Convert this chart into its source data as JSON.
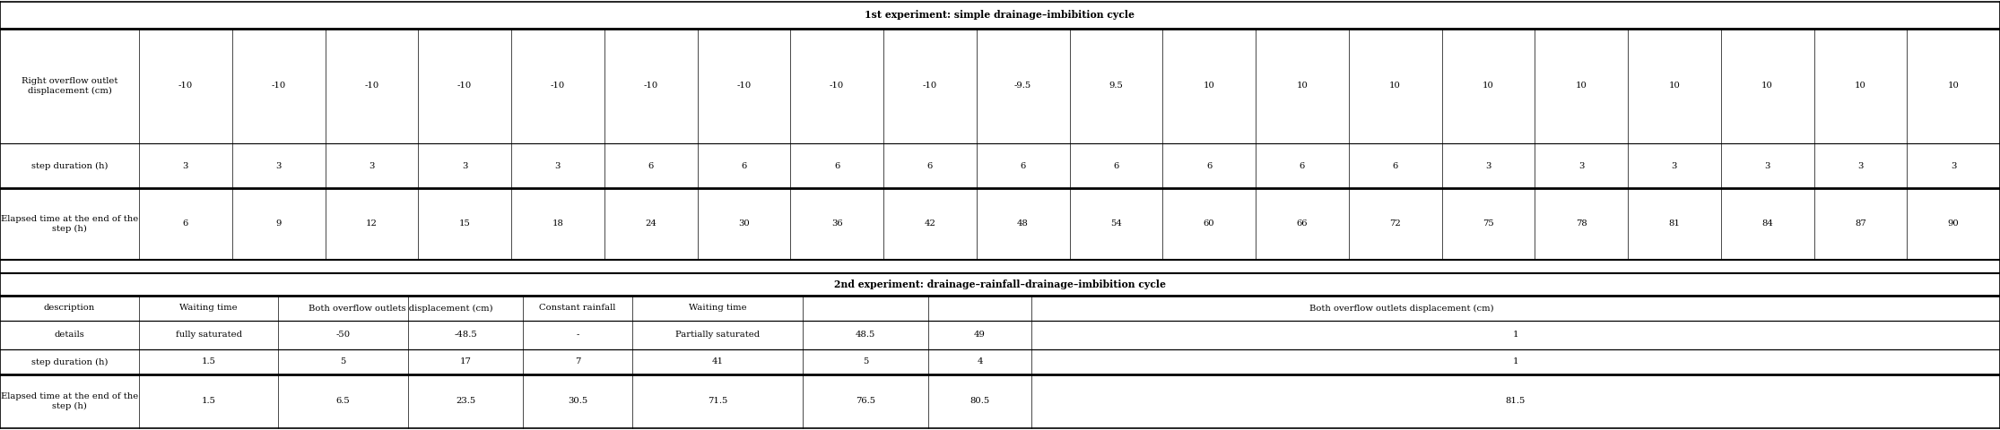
{
  "title1": "1st experiment: simple drainage–imbibition cycle",
  "title2": "2nd experiment: drainage–rainfall–drainage–imbibition cycle",
  "exp1_row0": "Right overflow outlet\ndisplacement (cm)",
  "exp1_row1": "step duration (h)",
  "exp1_row2": "Elapsed time at the end of the\nstep (h)",
  "exp1_displacement": [
    "-10",
    "-10",
    "-10",
    "-10",
    "-10",
    "-10",
    "-10",
    "-10",
    "-10",
    "-9.5",
    "9.5",
    "10",
    "10",
    "10",
    "10",
    "10",
    "10",
    "10",
    "10",
    "10"
  ],
  "exp1_step": [
    "3",
    "3",
    "3",
    "3",
    "3",
    "6",
    "6",
    "6",
    "6",
    "6",
    "6",
    "6",
    "6",
    "6",
    "3",
    "3",
    "3",
    "3",
    "3",
    "3"
  ],
  "exp1_elapsed": [
    "6",
    "9",
    "12",
    "15",
    "18",
    "24",
    "30",
    "36",
    "42",
    "48",
    "54",
    "60",
    "66",
    "72",
    "75",
    "78",
    "81",
    "84",
    "87",
    "90"
  ],
  "exp2_hdr": [
    "description",
    "Waiting time",
    "Both overflow outlets displacement (cm)",
    "Constant rainfall",
    "Waiting time",
    "Both overflow outlets displacement (cm)"
  ],
  "exp2_hdr_col_spans": [
    1,
    1,
    2,
    1,
    1,
    3
  ],
  "exp2_details": [
    "details",
    "fully saturated",
    "-50",
    "-48.5",
    "-",
    "Partially saturated",
    "48.5",
    "49",
    "1"
  ],
  "exp2_step": [
    "step duration (h)",
    "1.5",
    "5",
    "17",
    "7",
    "41",
    "5",
    "4",
    "1"
  ],
  "exp2_elapsed": [
    "Elapsed time at the end of the\nstep (h)",
    "1.5",
    "6.5",
    "23.5",
    "30.5",
    "71.5",
    "76.5",
    "80.5",
    "81.5"
  ],
  "bg_color": "#ffffff",
  "fs": 7.2,
  "tfs": 7.8
}
